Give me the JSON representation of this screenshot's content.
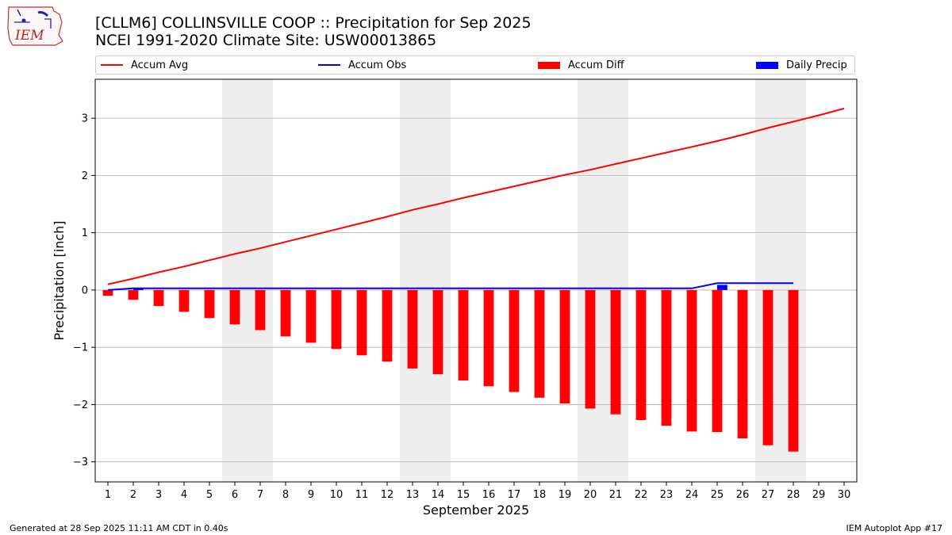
{
  "header": {
    "logo_text": "IEM",
    "title_line1": "[CLLM6] COLLINSVILLE COOP :: Precipitation for Sep 2025",
    "title_line2": "NCEI 1991-2020 Climate Site: USW00013865"
  },
  "legend": {
    "placement": "top, above plot",
    "items": [
      {
        "label": "Accum Avg",
        "kind": "line",
        "color": "#ff0000"
      },
      {
        "label": "Accum Obs",
        "kind": "line",
        "color": "#0000ff"
      },
      {
        "label": "Accum Diff",
        "kind": "box",
        "color": "#ff0000"
      },
      {
        "label": "Daily Precip",
        "kind": "box",
        "color": "#0000ff"
      }
    ]
  },
  "chart_data": {
    "type": "bar",
    "title": "[CLLM6] COLLINSVILLE COOP :: Precipitation for Sep 2025",
    "subtitle": "NCEI 1991-2020 Climate Site: USW00013865",
    "xlabel": "September 2025",
    "ylabel": "Precipitation [inch]",
    "xlim": [
      0.5,
      30.5
    ],
    "ylim": [
      -3.35,
      3.68
    ],
    "grid": "horizontal",
    "x": [
      1,
      2,
      3,
      4,
      5,
      6,
      7,
      8,
      9,
      10,
      11,
      12,
      13,
      14,
      15,
      16,
      17,
      18,
      19,
      20,
      21,
      22,
      23,
      24,
      25,
      26,
      27,
      28,
      29,
      30
    ],
    "x_ticks": [
      "1",
      "2",
      "3",
      "4",
      "5",
      "6",
      "7",
      "8",
      "9",
      "10",
      "11",
      "12",
      "13",
      "14",
      "15",
      "16",
      "17",
      "18",
      "19",
      "20",
      "21",
      "22",
      "23",
      "24",
      "25",
      "26",
      "27",
      "28",
      "29",
      "30"
    ],
    "y_ticks": [
      -3,
      -2,
      -1,
      0,
      1,
      2,
      3
    ],
    "y_tick_labels": [
      "−3",
      "−2",
      "−1",
      "0",
      "1",
      "2",
      "3"
    ],
    "weekend_shading": [
      [
        5.5,
        7.5
      ],
      [
        12.5,
        14.5
      ],
      [
        19.5,
        21.5
      ],
      [
        26.5,
        28.5
      ]
    ],
    "series": [
      {
        "name": "Accum Avg",
        "kind": "line",
        "color": "#ff0000",
        "values": [
          0.1,
          0.2,
          0.31,
          0.41,
          0.52,
          0.63,
          0.73,
          0.84,
          0.95,
          1.06,
          1.17,
          1.28,
          1.4,
          1.5,
          1.61,
          1.71,
          1.81,
          1.91,
          2.01,
          2.1,
          2.2,
          2.3,
          2.4,
          2.5,
          2.6,
          2.71,
          2.83,
          2.94,
          3.05,
          3.17
        ]
      },
      {
        "name": "Accum Obs",
        "kind": "line",
        "color": "#0000ff",
        "values": [
          0.0,
          0.03,
          0.03,
          0.03,
          0.03,
          0.03,
          0.03,
          0.03,
          0.03,
          0.03,
          0.03,
          0.03,
          0.03,
          0.03,
          0.03,
          0.03,
          0.03,
          0.03,
          0.03,
          0.03,
          0.03,
          0.03,
          0.03,
          0.03,
          0.12,
          0.12,
          0.12,
          0.12,
          null,
          null
        ]
      },
      {
        "name": "Accum Diff",
        "kind": "bar",
        "color": "#ff0000",
        "values": [
          -0.1,
          -0.17,
          -0.28,
          -0.38,
          -0.49,
          -0.6,
          -0.7,
          -0.81,
          -0.92,
          -1.03,
          -1.14,
          -1.25,
          -1.37,
          -1.47,
          -1.58,
          -1.68,
          -1.78,
          -1.88,
          -1.98,
          -2.07,
          -2.17,
          -2.27,
          -2.37,
          -2.47,
          -2.48,
          -2.59,
          -2.71,
          -2.82,
          null,
          null
        ]
      },
      {
        "name": "Daily Precip",
        "kind": "bar",
        "color": "#0000ff",
        "values": [
          0.0,
          0.03,
          0,
          0,
          0,
          0,
          0,
          0,
          0,
          0,
          0,
          0,
          0,
          0,
          0,
          0,
          0,
          0,
          0,
          0,
          0,
          0,
          0,
          0,
          0.09,
          0,
          0,
          0,
          null,
          null
        ]
      }
    ]
  },
  "footer": {
    "left": "Generated at 28 Sep 2025 11:11 AM CDT in 0.40s",
    "right": "IEM Autoplot App #17"
  }
}
